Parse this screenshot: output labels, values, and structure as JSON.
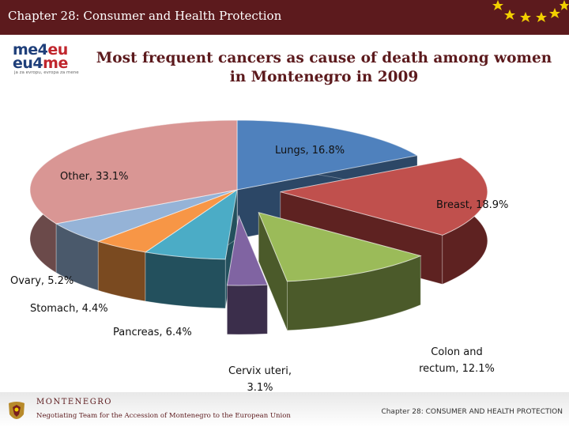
{
  "header": {
    "title": "Chapter 28: Consumer and Health Protection"
  },
  "logo": {
    "line1_blue": "me4",
    "line1_red": "eu",
    "line2_blue": "eu4",
    "line2_red": "me",
    "slogan": "ja za evropu, evropa za mene"
  },
  "colors": {
    "bar": "#5c1a1d",
    "star": "#f2d000"
  },
  "chart_data": {
    "type": "pie",
    "title": "Most frequent cancers as cause of death among women in Montenegro in 2009",
    "title_line1": "Most frequent cancers as cause of death among women",
    "title_line2": "in Montenegro in 2009",
    "slices": [
      {
        "name": "Lungs",
        "value": 16.8,
        "label": "Lungs, 16.8%",
        "color": "#4f81bd",
        "side": "#2c4766",
        "exploded": false
      },
      {
        "name": "Breast",
        "value": 18.9,
        "label": "Breast, 18.9%",
        "color": "#c0504d",
        "side": "#5e2221",
        "exploded": true
      },
      {
        "name": "Colon and rectum",
        "value": 12.1,
        "label": "Colon and rectum, 12.1%",
        "label_line1": "Colon and",
        "label_line2": "rectum, 12.1%",
        "color": "#9bbb59",
        "side": "#4b5a2a",
        "exploded": true
      },
      {
        "name": "Cervix uteri",
        "value": 3.1,
        "label": "Cervix uteri, 3.1%",
        "label_line1": "Cervix uteri,",
        "label_line2": "3.1%",
        "color": "#8064a2",
        "side": "#3b2e4b",
        "exploded": true
      },
      {
        "name": "Pancreas",
        "value": 6.4,
        "label": "Pancreas, 6.4%",
        "color": "#4bacc6",
        "side": "#23505d",
        "exploded": false
      },
      {
        "name": "Stomach",
        "value": 4.4,
        "label": "Stomach, 4.4%",
        "color": "#f79646",
        "side": "#7a4a20",
        "exploded": false
      },
      {
        "name": "Ovary",
        "value": 5.2,
        "label": "Ovary, 5.2%",
        "color": "#95b3d7",
        "side": "#4a596b",
        "exploded": false
      },
      {
        "name": "Other",
        "value": 33.1,
        "label": "Other, 33.1%",
        "color": "#d99694",
        "side": "#6b4a4a",
        "exploded": false
      }
    ]
  },
  "footer": {
    "org": "MONTENEGRO",
    "team": "Negotiating Team for the Accession of Montenegro to the European Union",
    "chapter": "Chapter 28: CONSUMER AND HEALTH PROTECTION"
  }
}
